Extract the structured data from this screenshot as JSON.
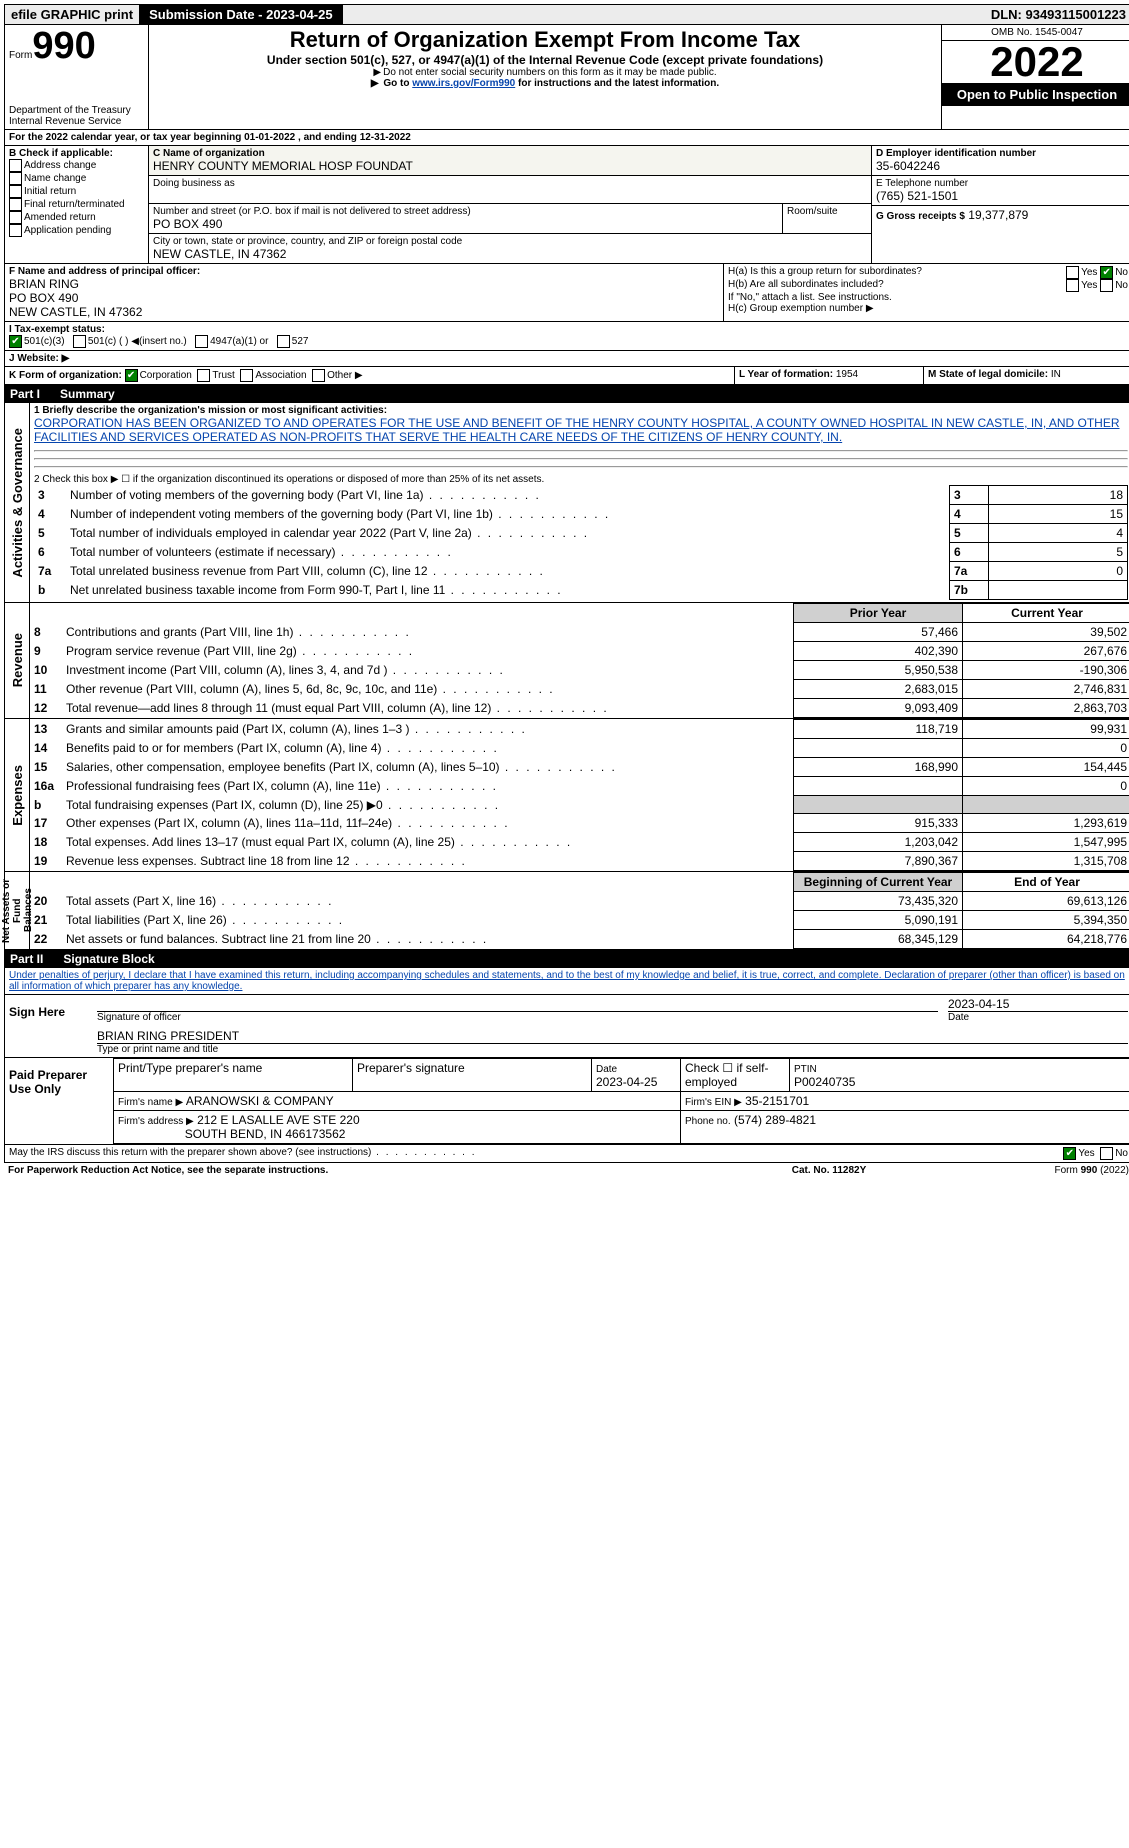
{
  "topbar": {
    "efile": "efile GRAPHIC print",
    "submission_label": "Submission Date - 2023-04-25",
    "dln_label": "DLN: 93493115001223"
  },
  "form_number_prefix": "Form",
  "form_number": "990",
  "title": "Return of Organization Exempt From Income Tax",
  "subtitle": "Under section 501(c), 527, or 4947(a)(1) of the Internal Revenue Code (except private foundations)",
  "note1": "Do not enter social security numbers on this form as it may be made public.",
  "note2_pre": "Go to ",
  "note2_link": "www.irs.gov/Form990",
  "note2_post": " for instructions and the latest information.",
  "omb": "OMB No. 1545-0047",
  "year": "2022",
  "inspection": "Open to Public Inspection",
  "dept": "Department of the Treasury",
  "irs": "Internal Revenue Service",
  "period_line": "For the 2022 calendar year, or tax year beginning 01-01-2022    , and ending 12-31-2022",
  "sectionA": "A",
  "sectionB": {
    "title": "B Check if applicable:",
    "items": [
      "Address change",
      "Name change",
      "Initial return",
      "Final return/terminated",
      "Amended return",
      "Application pending"
    ]
  },
  "sectionC": {
    "label": "C Name of organization",
    "name": "HENRY COUNTY MEMORIAL HOSP FOUNDAT",
    "dba_label": "Doing business as",
    "street_label": "Number and street (or P.O. box if mail is not delivered to street address)",
    "room_label": "Room/suite",
    "street": "PO BOX 490",
    "city_label": "City or town, state or province, country, and ZIP or foreign postal code",
    "city": "NEW CASTLE, IN  47362"
  },
  "sectionD": {
    "label": "D Employer identification number",
    "value": "35-6042246"
  },
  "sectionE": {
    "label": "E Telephone number",
    "value": "(765) 521-1501"
  },
  "sectionG": {
    "label": "G Gross receipts $",
    "value": "19,377,879"
  },
  "sectionF": {
    "label": "F  Name and address of principal officer:",
    "name": "BRIAN RING",
    "addr1": "PO BOX 490",
    "addr2": "NEW CASTLE, IN  47362"
  },
  "sectionH": {
    "ha": "H(a)  Is this a group return for subordinates?",
    "hb": "H(b)  Are all subordinates included?",
    "hb_note": "If \"No,\" attach a list. See instructions.",
    "hc": "H(c)  Group exemption number ▶",
    "yes": "Yes",
    "no": "No"
  },
  "sectionI": {
    "label": "I    Tax-exempt status:",
    "opts": [
      "501(c)(3)",
      "501(c) (  ) ◀(insert no.)",
      "4947(a)(1) or",
      "527"
    ]
  },
  "sectionJ": {
    "label": "J   Website: ▶"
  },
  "sectionK": {
    "label": "K Form of organization:",
    "opts": [
      "Corporation",
      "Trust",
      "Association",
      "Other ▶"
    ]
  },
  "sectionL": {
    "label": "L Year of formation:",
    "value": "1954"
  },
  "sectionM": {
    "label": "M State of legal domicile:",
    "value": "IN"
  },
  "part1": {
    "label": "Part I",
    "title": "Summary"
  },
  "mission_label": "1  Briefly describe the organization's mission or most significant activities:",
  "mission": "CORPORATION HAS BEEN ORGANIZED TO AND OPERATES FOR THE USE AND BENEFIT OF THE HENRY COUNTY HOSPITAL, A COUNTY OWNED HOSPITAL IN NEW CASTLE, IN, AND OTHER FACILITIES AND SERVICES OPERATED AS NON-PROFITS THAT SERVE THE HEALTH CARE NEEDS OF THE CITIZENS OF HENRY COUNTY, IN.",
  "line2": "2   Check this box ▶ ☐  if the organization discontinued its operations or disposed of more than 25% of its net assets.",
  "gov_rows": [
    {
      "n": "3",
      "text": "Number of voting members of the governing body (Part VI, line 1a)",
      "box": "3",
      "val": "18"
    },
    {
      "n": "4",
      "text": "Number of independent voting members of the governing body (Part VI, line 1b)",
      "box": "4",
      "val": "15"
    },
    {
      "n": "5",
      "text": "Total number of individuals employed in calendar year 2022 (Part V, line 2a)",
      "box": "5",
      "val": "4"
    },
    {
      "n": "6",
      "text": "Total number of volunteers (estimate if necessary)",
      "box": "6",
      "val": "5"
    },
    {
      "n": "7a",
      "text": "Total unrelated business revenue from Part VIII, column (C), line 12",
      "box": "7a",
      "val": "0"
    },
    {
      "n": "b",
      "text": "Net unrelated business taxable income from Form 990-T, Part I, line 11",
      "box": "7b",
      "val": ""
    }
  ],
  "two_col_header": {
    "prior": "Prior Year",
    "current": "Current Year"
  },
  "revenue_rows": [
    {
      "n": "8",
      "text": "Contributions and grants (Part VIII, line 1h)",
      "prior": "57,466",
      "current": "39,502"
    },
    {
      "n": "9",
      "text": "Program service revenue (Part VIII, line 2g)",
      "prior": "402,390",
      "current": "267,676"
    },
    {
      "n": "10",
      "text": "Investment income (Part VIII, column (A), lines 3, 4, and 7d )",
      "prior": "5,950,538",
      "current": "-190,306"
    },
    {
      "n": "11",
      "text": "Other revenue (Part VIII, column (A), lines 5, 6d, 8c, 9c, 10c, and 11e)",
      "prior": "2,683,015",
      "current": "2,746,831"
    },
    {
      "n": "12",
      "text": "Total revenue—add lines 8 through 11 (must equal Part VIII, column (A), line 12)",
      "prior": "9,093,409",
      "current": "2,863,703"
    }
  ],
  "expense_rows": [
    {
      "n": "13",
      "text": "Grants and similar amounts paid (Part IX, column (A), lines 1–3 )",
      "prior": "118,719",
      "current": "99,931"
    },
    {
      "n": "14",
      "text": "Benefits paid to or for members (Part IX, column (A), line 4)",
      "prior": "",
      "current": "0"
    },
    {
      "n": "15",
      "text": "Salaries, other compensation, employee benefits (Part IX, column (A), lines 5–10)",
      "prior": "168,990",
      "current": "154,445"
    },
    {
      "n": "16a",
      "text": "Professional fundraising fees (Part IX, column (A), line 11e)",
      "prior": "",
      "current": "0"
    },
    {
      "n": "b",
      "text": "Total fundraising expenses (Part IX, column (D), line 25) ▶0",
      "prior": "SHADE",
      "current": "SHADE"
    },
    {
      "n": "17",
      "text": "Other expenses (Part IX, column (A), lines 11a–11d, 11f–24e)",
      "prior": "915,333",
      "current": "1,293,619"
    },
    {
      "n": "18",
      "text": "Total expenses. Add lines 13–17 (must equal Part IX, column (A), line 25)",
      "prior": "1,203,042",
      "current": "1,547,995"
    },
    {
      "n": "19",
      "text": "Revenue less expenses. Subtract line 18 from line 12",
      "prior": "7,890,367",
      "current": "1,315,708"
    }
  ],
  "net_header": {
    "begin": "Beginning of Current Year",
    "end": "End of Year"
  },
  "net_rows": [
    {
      "n": "20",
      "text": "Total assets (Part X, line 16)",
      "prior": "73,435,320",
      "current": "69,613,126"
    },
    {
      "n": "21",
      "text": "Total liabilities (Part X, line 26)",
      "prior": "5,090,191",
      "current": "5,394,350"
    },
    {
      "n": "22",
      "text": "Net assets or fund balances. Subtract line 21 from line 20",
      "prior": "68,345,129",
      "current": "64,218,776"
    }
  ],
  "part2": {
    "label": "Part II",
    "title": "Signature Block"
  },
  "penalties": "Under penalties of perjury, I declare that I have examined this return, including accompanying schedules and statements, and to the best of my knowledge and belief, it is true, correct, and complete. Declaration of preparer (other than officer) is based on all information of which preparer has any knowledge.",
  "sign": {
    "title": "Sign Here",
    "sig_label": "Signature of officer",
    "date_label": "Date",
    "date_val": "2023-04-15",
    "name": "BRIAN RING  PRESIDENT",
    "name_label": "Type or print name and title"
  },
  "paid": {
    "title": "Paid Preparer Use Only",
    "col1": "Print/Type preparer's name",
    "col2": "Preparer's signature",
    "col3": "Date",
    "date_val": "2023-04-25",
    "check_label": "Check ☐ if self-employed",
    "ptin_label": "PTIN",
    "ptin": "P00240735",
    "firm_label": "Firm's name    ▶",
    "firm": "ARANOWSKI & COMPANY",
    "ein_label": "Firm's EIN ▶",
    "ein": "35-2151701",
    "addr_label": "Firm's address ▶",
    "addr1": "212 E LASALLE AVE STE 220",
    "addr2": "SOUTH BEND, IN  466173562",
    "phone_label": "Phone no.",
    "phone": "(574) 289-4821"
  },
  "discuss": "May the IRS discuss this return with the preparer shown above? (see instructions)",
  "discuss_yes": "Yes",
  "discuss_no": "No",
  "footer": {
    "left": "For Paperwork Reduction Act Notice, see the separate instructions.",
    "mid": "Cat. No. 11282Y",
    "right": "Form 990 (2022)"
  },
  "vlabels": {
    "gov": "Activities & Governance",
    "rev": "Revenue",
    "exp": "Expenses",
    "net": "Net Assets or Fund Balances"
  }
}
